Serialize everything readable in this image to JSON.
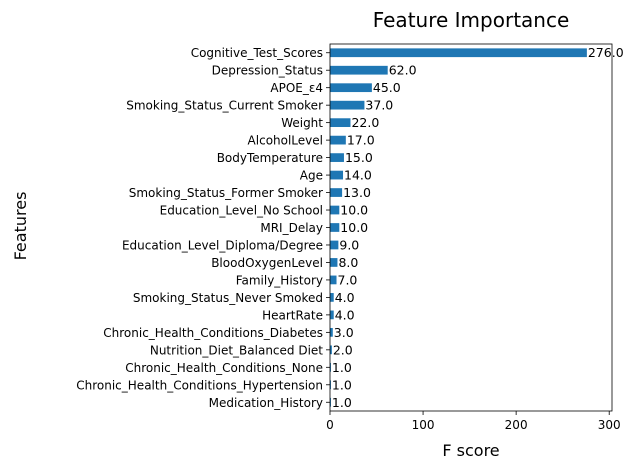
{
  "chart_data": {
    "type": "bar",
    "orientation": "horizontal",
    "title": "Feature Importance",
    "xlabel": "F score",
    "ylabel": "Features",
    "xlim": [
      0,
      303
    ],
    "xticks": [
      0,
      100,
      200,
      300
    ],
    "grid": false,
    "legend": "none",
    "bar_color": "#1f77b4",
    "categories": [
      "Cognitive_Test_Scores",
      "Depression_Status",
      "APOE_ε4",
      "Smoking_Status_Current Smoker",
      "Weight",
      "AlcoholLevel",
      "BodyTemperature",
      "Age",
      "Smoking_Status_Former Smoker",
      "Education_Level_No School",
      "MRI_Delay",
      "Education_Level_Diploma/Degree",
      "BloodOxygenLevel",
      "Family_History",
      "Smoking_Status_Never Smoked",
      "HeartRate",
      "Chronic_Health_Conditions_Diabetes",
      "Nutrition_Diet_Balanced Diet",
      "Chronic_Health_Conditions_None",
      "Chronic_Health_Conditions_Hypertension",
      "Medication_History"
    ],
    "values": [
      276.0,
      62.0,
      45.0,
      37.0,
      22.0,
      17.0,
      15.0,
      14.0,
      13.0,
      10.0,
      10.0,
      9.0,
      8.0,
      7.0,
      4.0,
      4.0,
      3.0,
      2.0,
      1.0,
      1.0,
      1.0
    ],
    "value_labels": [
      "276.0",
      "62.0",
      "45.0",
      "37.0",
      "22.0",
      "17.0",
      "15.0",
      "14.0",
      "13.0",
      "10.0",
      "10.0",
      "9.0",
      "8.0",
      "7.0",
      "4.0",
      "4.0",
      "3.0",
      "2.0",
      "1.0",
      "1.0",
      "1.0"
    ]
  }
}
